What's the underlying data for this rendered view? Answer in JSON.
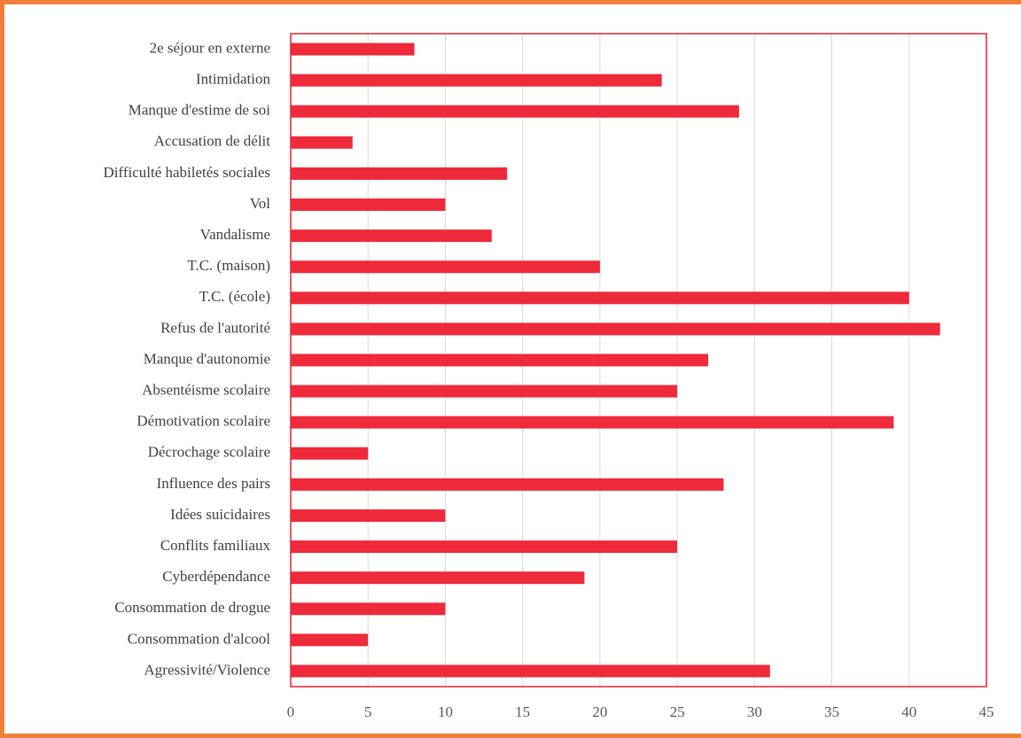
{
  "chart_data": {
    "type": "barh",
    "categories": [
      "2e séjour en externe",
      "Intimidation",
      "Manque d'estime de soi",
      "Accusation de délit",
      "Difficulté habiletés sociales",
      "Vol",
      "Vandalisme",
      "T.C. (maison)",
      "T.C. (école)",
      "Refus de l'autorité",
      "Manque d'autonomie",
      "Absentéisme scolaire",
      "Démotivation scolaire",
      "Décrochage scolaire",
      "Influence des pairs",
      "Idées suicidaires",
      "Conflits familiaux",
      "Cyberdépendance",
      "Consommation de drogue",
      "Consommation d'alcool",
      "Agressivité/Violence"
    ],
    "values": [
      8,
      24,
      29,
      4,
      14,
      10,
      13,
      20,
      40,
      42,
      27,
      25,
      39,
      5,
      28,
      10,
      25,
      19,
      10,
      5,
      31
    ],
    "color": "#ee2a3b",
    "xlim": [
      0,
      45
    ],
    "xticks": [
      0,
      5,
      10,
      15,
      20,
      25,
      30,
      35,
      40,
      45
    ],
    "grid": true
  }
}
